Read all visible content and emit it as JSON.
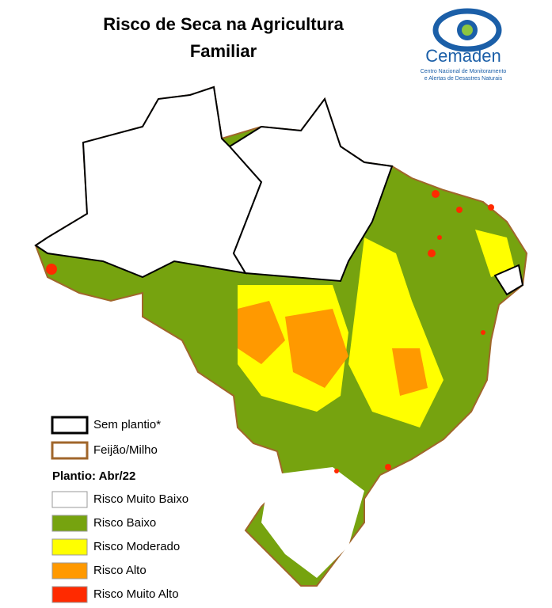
{
  "header": {
    "title": [
      "Risco de Seca na Agricultura",
      "Familiar"
    ]
  },
  "logo": {
    "name": "Cemaden",
    "subtitle": [
      "Centro Nacional de Monitoramento",
      "e Alertas de Desastres Naturais"
    ]
  },
  "legend": {
    "boundaries": [
      {
        "label": "Sem plantio*",
        "color": "#000000"
      },
      {
        "label": "Feijão/Milho",
        "color": "#a0662b"
      }
    ],
    "heading": "Plantio: Abr/22",
    "classes": [
      {
        "label": "Risco Muito Baixo",
        "color": "#ffffff"
      },
      {
        "label": "Risco Baixo",
        "color": "#76a30f"
      },
      {
        "label": "Risco Moderado",
        "color": "#ffff00"
      },
      {
        "label": "Risco Alto",
        "color": "#ff9900"
      },
      {
        "label": "Risco Muito Alto",
        "color": "#ff2a00"
      }
    ]
  }
}
